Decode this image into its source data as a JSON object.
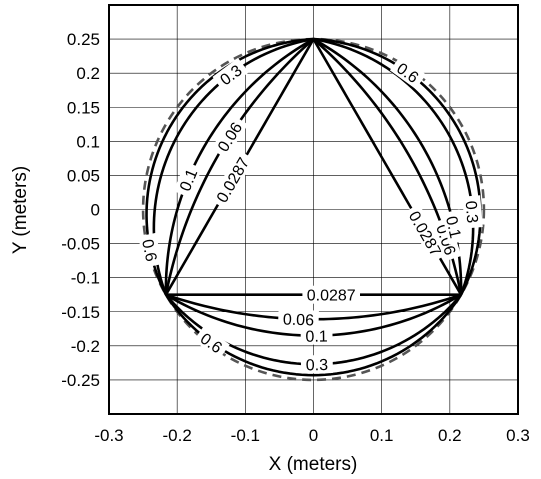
{
  "chart_data": {
    "type": "line",
    "title": "",
    "xlabel": "X (meters)",
    "ylabel": "Y (meters)",
    "xlim": [
      -0.3,
      0.3
    ],
    "ylim": [
      -0.3,
      0.3
    ],
    "grid": true,
    "x_ticks": [
      -0.3,
      -0.2,
      -0.1,
      0,
      0.1,
      0.2,
      0.3
    ],
    "x_tick_labels": [
      "-0.3",
      "-0.2",
      "-0.1",
      "0",
      "0.1",
      "0.2",
      "0.3"
    ],
    "y_ticks": [
      0.25,
      0.2,
      0.15,
      0.1,
      0.05,
      0,
      -0.05,
      -0.1,
      -0.15,
      -0.2,
      -0.25
    ],
    "y_tick_labels": [
      "0.25",
      "0.2",
      "0.15",
      "0.1",
      "0.05",
      "0",
      "-0.05",
      "-0.1",
      "-0.15",
      "-0.2",
      "-0.25"
    ],
    "boundary": {
      "shape": "circle",
      "center": [
        0,
        0
      ],
      "radius": 0.25,
      "style": "dashed"
    },
    "vertices": [
      [
        0,
        0.25
      ],
      [
        -0.2165,
        -0.125
      ],
      [
        0.2165,
        -0.125
      ]
    ],
    "contour_levels": [
      "0.0287",
      "0.06",
      "0.1",
      "0.3",
      "0.6"
    ],
    "arc_sagittas": {
      "0.0287": 0,
      "0.06": 0.036,
      "0.1": 0.06,
      "0.3": 0.102,
      "0.6": 0.118
    },
    "labels": [
      {
        "text": "0.0287",
        "edge": 0,
        "t": 0.55
      },
      {
        "text": "0.06",
        "edge": 0,
        "t": 0.43
      },
      {
        "text": "0.1",
        "edge": 0,
        "t": 0.62
      },
      {
        "text": "0.3",
        "edge": 0,
        "t": 0.27
      },
      {
        "text": "0.6",
        "edge": 0,
        "t": 0.865
      },
      {
        "text": "0.0287",
        "edge": 1,
        "t": 0.56
      },
      {
        "text": "0.06",
        "edge": 1,
        "t": 0.45
      },
      {
        "text": "0.1",
        "edge": 1,
        "t": 0.51
      },
      {
        "text": "0.3",
        "edge": 1,
        "t": 0.51
      },
      {
        "text": "0.6",
        "edge": 1,
        "t": 0.19
      },
      {
        "text": "0.0287",
        "edge": 2,
        "t": 0.24
      },
      {
        "text": "0.06",
        "edge": 2,
        "t": 0.19
      },
      {
        "text": "0.1",
        "edge": 2,
        "t": 0.22
      },
      {
        "text": "0.3",
        "edge": 2,
        "t": 0.25
      },
      {
        "text": "0.6",
        "edge": 2,
        "t": 0.71
      }
    ]
  }
}
